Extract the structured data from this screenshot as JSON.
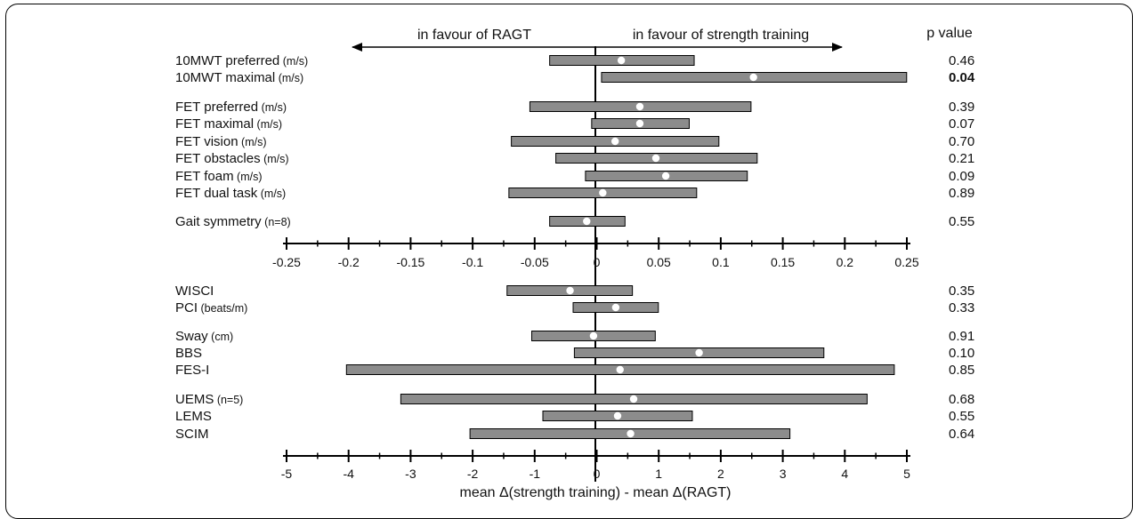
{
  "chart_data": [
    {
      "type": "forest",
      "header_left": "in favour of RAGT",
      "header_right": "in favour of strength training",
      "pvalue_header": "p value",
      "xlim": [
        -0.25,
        0.25
      ],
      "ticks": [
        "-0.25",
        "-0.2",
        "-0.15",
        "-0.1",
        "-0.05",
        "0",
        "0.05",
        "0.1",
        "0.15",
        "0.2",
        "0.25"
      ],
      "rows": [
        {
          "label": "10MWT preferred",
          "unit": "(m/s)",
          "low": -0.037,
          "high": 0.08,
          "mean": 0.021,
          "p": "0.46",
          "bold": false
        },
        {
          "label": "10MWT maximal",
          "unit": "(m/s)",
          "low": 0.005,
          "high": 0.252,
          "mean": 0.128,
          "p": "0.04",
          "bold": true
        },
        {
          "label": "FET preferred",
          "unit": "(m/s)",
          "low": -0.053,
          "high": 0.126,
          "mean": 0.036,
          "p": "0.39",
          "bold": false
        },
        {
          "label": "FET maximal",
          "unit": "(m/s)",
          "low": -0.003,
          "high": 0.076,
          "mean": 0.036,
          "p": "0.07",
          "bold": false
        },
        {
          "label": "FET vision",
          "unit": "(m/s)",
          "low": -0.068,
          "high": 0.1,
          "mean": 0.016,
          "p": "0.70",
          "bold": false
        },
        {
          "label": "FET obstacles",
          "unit": "(m/s)",
          "low": -0.032,
          "high": 0.131,
          "mean": 0.049,
          "p": "0.21",
          "bold": false
        },
        {
          "label": "FET foam",
          "unit": "(m/s)",
          "low": -0.008,
          "high": 0.123,
          "mean": 0.057,
          "p": "0.09",
          "bold": false
        },
        {
          "label": "FET dual task",
          "unit": "(m/s)",
          "low": -0.07,
          "high": 0.082,
          "mean": 0.006,
          "p": "0.89",
          "bold": false
        },
        {
          "label": "Gait symmetry",
          "unit": "(n=8)",
          "low": -0.037,
          "high": 0.024,
          "mean": -0.007,
          "p": "0.55",
          "bold": false
        }
      ]
    },
    {
      "type": "forest",
      "xlabel": "mean Δ(strength training) - mean Δ(RAGT)",
      "xlim": [
        -5,
        5
      ],
      "ticks": [
        "-5",
        "-4",
        "-3",
        "-2",
        "-1",
        "0",
        "1",
        "2",
        "3",
        "4",
        "5"
      ],
      "rows": [
        {
          "label": "WISCI",
          "unit": "",
          "low": -1.43,
          "high": 0.6,
          "mean": -0.41,
          "p": "0.35",
          "bold": false
        },
        {
          "label": "PCI",
          "unit": "(beats/m)",
          "low": -0.36,
          "high": 1.02,
          "mean": 0.33,
          "p": "0.33",
          "bold": false
        },
        {
          "label": "Sway",
          "unit": "(cm)",
          "low": -1.03,
          "high": 0.97,
          "mean": -0.03,
          "p": "0.91",
          "bold": false
        },
        {
          "label": "BBS",
          "unit": "",
          "low": -0.34,
          "high": 3.7,
          "mean": 1.68,
          "p": "0.10",
          "bold": false
        },
        {
          "label": "FES-I",
          "unit": "",
          "low": -4.03,
          "high": 4.84,
          "mean": 0.4,
          "p": "0.85",
          "bold": false
        },
        {
          "label": "UEMS",
          "unit": "(n=5)",
          "low": -3.15,
          "high": 4.4,
          "mean": 0.62,
          "p": "0.68",
          "bold": false
        },
        {
          "label": "LEMS",
          "unit": "",
          "low": -0.85,
          "high": 1.57,
          "mean": 0.36,
          "p": "0.55",
          "bold": false
        },
        {
          "label": "SCIM",
          "unit": "",
          "low": -2.03,
          "high": 3.15,
          "mean": 0.57,
          "p": "0.64",
          "bold": false
        }
      ]
    }
  ]
}
